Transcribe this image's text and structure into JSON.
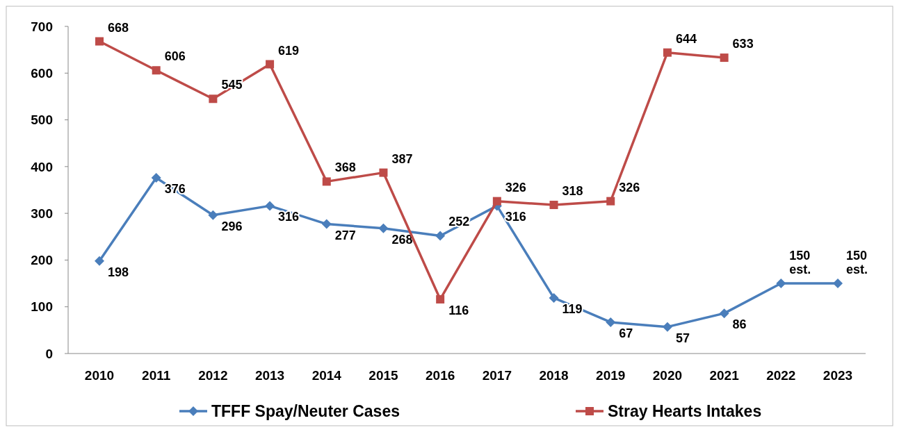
{
  "chart_data": {
    "type": "line",
    "categories": [
      "2010",
      "2011",
      "2012",
      "2013",
      "2014",
      "2015",
      "2016",
      "2017",
      "2018",
      "2019",
      "2020",
      "2021",
      "2022",
      "2023"
    ],
    "series": [
      {
        "name": "TFFF Spay/Neuter Cases",
        "color": "#4a7ebb",
        "marker": "diamond",
        "values": [
          198,
          376,
          296,
          316,
          277,
          268,
          252,
          316,
          119,
          67,
          57,
          86,
          150,
          150
        ],
        "value_labels": [
          "198",
          "376",
          "296",
          "316",
          "277",
          "268",
          "252",
          "316",
          "119",
          "67",
          "57",
          "86",
          "150 est.",
          "150 est."
        ]
      },
      {
        "name": "Stray Hearts Intakes",
        "color": "#be4b48",
        "marker": "square",
        "values": [
          668,
          606,
          545,
          619,
          368,
          387,
          116,
          326,
          318,
          326,
          644,
          633,
          null,
          null
        ],
        "value_labels": [
          "668",
          "606",
          "545",
          "619",
          "368",
          "387",
          "116",
          "326",
          "318",
          "326",
          "644",
          "633",
          null,
          null
        ]
      }
    ],
    "ylim": [
      0,
      700
    ],
    "yticks": [
      0,
      100,
      200,
      300,
      400,
      500,
      600,
      700
    ],
    "grid": false,
    "legend": "bottom",
    "line_style": "solid"
  }
}
